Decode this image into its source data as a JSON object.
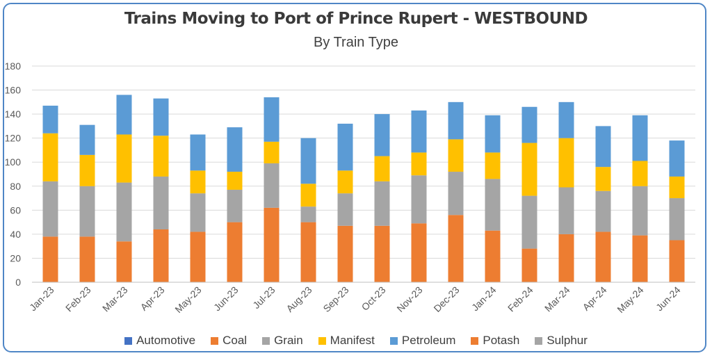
{
  "chart_data": {
    "type": "bar",
    "stacked": true,
    "title": "Trains Moving to Port of Prince Rupert - WESTBOUND",
    "subtitle": "By Train Type",
    "ylim": [
      0,
      180
    ],
    "yticks": [
      "0",
      "20",
      "40",
      "60",
      "80",
      "100",
      "120",
      "140",
      "160",
      "180"
    ],
    "ytick_values": [
      0,
      20,
      40,
      60,
      80,
      100,
      120,
      140,
      160,
      180
    ],
    "grid": true,
    "legend_position": "bottom",
    "categories": [
      "Jan-23",
      "Feb-23",
      "Mar-23",
      "Apr-23",
      "May-23",
      "Jun-23",
      "Jul-23",
      "Aug-23",
      "Sep-23",
      "Oct-23",
      "Nov-23",
      "Dec-23",
      "Jan-24",
      "Feb-24",
      "Mar-24",
      "Apr-24",
      "May-24",
      "Jun-24"
    ],
    "series": [
      {
        "name": "Automotive",
        "color": "#4472c4",
        "values": [
          0,
          0,
          0,
          0,
          0,
          0,
          0,
          0,
          0,
          0,
          0,
          0,
          0,
          0,
          0,
          0,
          0,
          0
        ]
      },
      {
        "name": "Coal",
        "color": "#ed7d31",
        "values": [
          0,
          0,
          0,
          0,
          0,
          0,
          0,
          0,
          0,
          0,
          0,
          0,
          0,
          0,
          0,
          0,
          0,
          0
        ]
      },
      {
        "name": "Grain",
        "color": "#a5a5a5",
        "values": [
          0,
          0,
          0,
          0,
          0,
          0,
          0,
          0,
          0,
          0,
          0,
          0,
          0,
          0,
          0,
          0,
          0,
          0
        ]
      },
      {
        "name": "Manifest",
        "color": "#ffc000",
        "values": [
          40,
          26,
          40,
          34,
          19,
          15,
          18,
          19,
          19,
          21,
          19,
          27,
          22,
          44,
          41,
          20,
          21,
          18
        ]
      },
      {
        "name": "Petroleum",
        "color": "#5b9bd5",
        "values": [
          23,
          25,
          33,
          31,
          30,
          37,
          37,
          38,
          39,
          35,
          35,
          31,
          31,
          30,
          30,
          34,
          38,
          30
        ]
      },
      {
        "name": "Potash",
        "color": "#ed7d31",
        "values": [
          38,
          38,
          34,
          44,
          42,
          50,
          62,
          50,
          47,
          47,
          49,
          56,
          43,
          28,
          40,
          42,
          39,
          35
        ]
      },
      {
        "name": "Sulphur",
        "color": "#a5a5a5",
        "values": [
          46,
          42,
          49,
          44,
          32,
          27,
          37,
          13,
          27,
          37,
          40,
          36,
          43,
          44,
          39,
          34,
          41,
          35
        ]
      }
    ],
    "stack_order": [
      "Automotive",
      "Coal",
      "Grain",
      "Potash",
      "Sulphur",
      "Manifest",
      "Petroleum"
    ]
  },
  "colors": {
    "frame_border": "#4f86c6",
    "gridline": "#d9d9d9",
    "axis_text": "#595959"
  }
}
